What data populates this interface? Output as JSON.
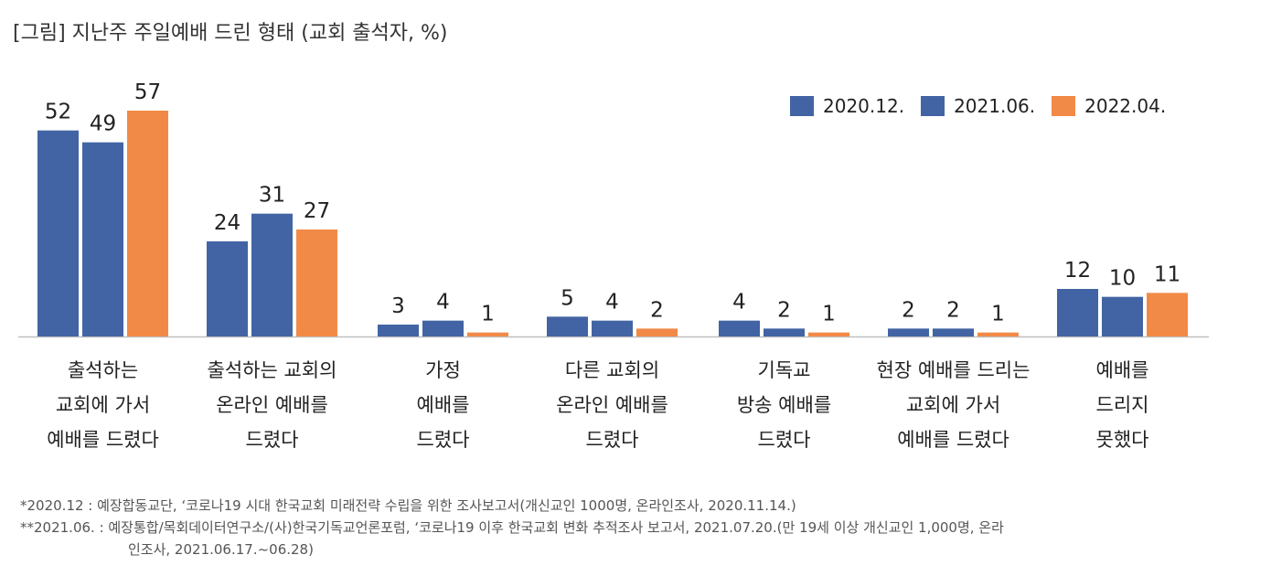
{
  "title": "[그림] 지난주 주일예배 드린 형태 (교회 출석자, %)",
  "colors": {
    "s1": "#4264a4",
    "s2": "#4264a4",
    "s3": "#f28a47",
    "axis": "#bfbfbf"
  },
  "chart_data": {
    "type": "bar",
    "title": "[그림] 지난주 주일예배 드린 형태 (교회 출석자, %)",
    "categories": [
      [
        "출석하는",
        "교회에 가서",
        "예배를 드렸다"
      ],
      [
        "출석하는 교회의",
        "온라인 예배를",
        "드렸다"
      ],
      [
        "가정",
        "예배를",
        "드렸다"
      ],
      [
        "다른 교회의",
        "온라인 예배를",
        "드렸다"
      ],
      [
        "기독교",
        "방송 예배를",
        "드렸다"
      ],
      [
        "현장 예배를 드리는",
        "교회에 가서",
        "예배를 드렸다"
      ],
      [
        "예배를",
        "드리지",
        "못했다"
      ]
    ],
    "series": [
      {
        "name": "2020.12.",
        "values": [
          52,
          24,
          3,
          5,
          4,
          2,
          12
        ]
      },
      {
        "name": "2021.06.",
        "values": [
          49,
          31,
          4,
          4,
          2,
          2,
          10
        ]
      },
      {
        "name": "2022.04.",
        "values": [
          57,
          27,
          1,
          2,
          1,
          1,
          11
        ]
      }
    ],
    "ylim": [
      0,
      57
    ],
    "legend_position": "top-right",
    "grid": false
  },
  "notes": {
    "line1": "*2020.12 : 예장합동교단, ‘코로나19 시대 한국교회 미래전략 수립을 위한 조사보고서(개신교인 1000명, 온라인조사, 2020.11.14.)",
    "line2": "**2021.06. : 예장통합/목회데이터연구소/(사)한국기독교언론포럼, ‘코로나19 이후 한국교회 변화 추적조사 보고서, 2021.07.20.(만 19세 이상 개신교인 1,000명, 온라",
    "line3": "인조사, 2021.06.17.~06.28)"
  }
}
